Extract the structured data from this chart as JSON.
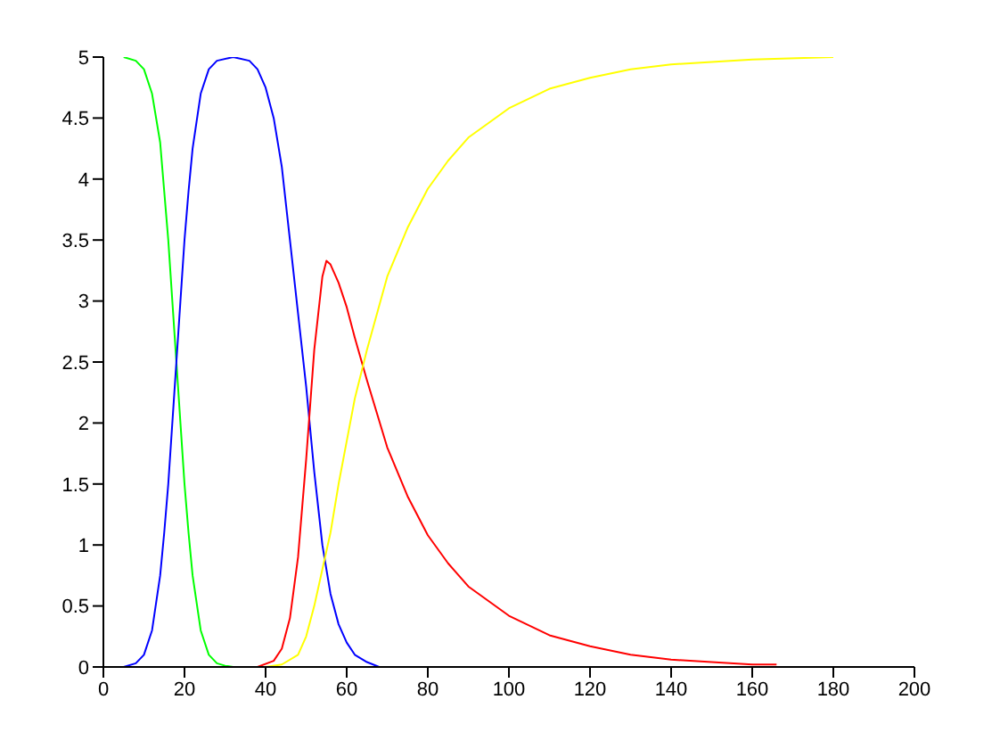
{
  "chart_data": {
    "type": "line",
    "xlim": [
      0,
      200
    ],
    "xticks": [
      0,
      20,
      40,
      60,
      80,
      100,
      120,
      140,
      160,
      180,
      200
    ],
    "ylim": [
      0,
      5
    ],
    "yticks": [
      0,
      0.5,
      1,
      1.5,
      2,
      2.5,
      3,
      3.5,
      4,
      4.5,
      5
    ],
    "grid": false,
    "series": [
      {
        "color": "#00ff00",
        "x": [
          5,
          8,
          10,
          12,
          14,
          15,
          16,
          17,
          18,
          19,
          20,
          21,
          22,
          24,
          26,
          28,
          30,
          32
        ],
        "values": [
          5,
          4.97,
          4.9,
          4.7,
          4.3,
          3.9,
          3.5,
          3.0,
          2.5,
          2.0,
          1.5,
          1.1,
          0.75,
          0.3,
          0.1,
          0.03,
          0.01,
          0
        ]
      },
      {
        "color": "#0000ff",
        "x": [
          5,
          8,
          10,
          12,
          14,
          15,
          16,
          17,
          18,
          19,
          20,
          21,
          22,
          24,
          26,
          28,
          32,
          36,
          38,
          40,
          42,
          44,
          46,
          48,
          50,
          52,
          54,
          56,
          58,
          60,
          62,
          65,
          68
        ],
        "values": [
          0,
          0.03,
          0.1,
          0.3,
          0.75,
          1.1,
          1.5,
          2.0,
          2.5,
          3.0,
          3.5,
          3.9,
          4.25,
          4.7,
          4.9,
          4.97,
          5,
          4.97,
          4.9,
          4.75,
          4.5,
          4.1,
          3.5,
          2.9,
          2.3,
          1.6,
          1.0,
          0.6,
          0.35,
          0.2,
          0.1,
          0.04,
          0
        ]
      },
      {
        "color": "#ff0000",
        "x": [
          38,
          42,
          44,
          46,
          48,
          50,
          52,
          54,
          55,
          56,
          58,
          60,
          62,
          65,
          70,
          75,
          80,
          85,
          90,
          100,
          110,
          120,
          130,
          140,
          150,
          160,
          166
        ],
        "values": [
          0,
          0.05,
          0.15,
          0.4,
          0.9,
          1.7,
          2.6,
          3.2,
          3.33,
          3.3,
          3.15,
          2.95,
          2.7,
          2.35,
          1.8,
          1.4,
          1.08,
          0.85,
          0.66,
          0.42,
          0.26,
          0.17,
          0.1,
          0.06,
          0.04,
          0.02,
          0.02
        ]
      },
      {
        "color": "#ffff00",
        "x": [
          40,
          44,
          48,
          50,
          52,
          54,
          56,
          58,
          60,
          62,
          65,
          70,
          75,
          80,
          85,
          90,
          100,
          110,
          120,
          130,
          140,
          150,
          160,
          180
        ],
        "values": [
          0,
          0.02,
          0.1,
          0.25,
          0.5,
          0.8,
          1.1,
          1.5,
          1.85,
          2.2,
          2.6,
          3.2,
          3.6,
          3.92,
          4.15,
          4.34,
          4.58,
          4.74,
          4.83,
          4.9,
          4.94,
          4.96,
          4.98,
          5
        ]
      }
    ]
  }
}
